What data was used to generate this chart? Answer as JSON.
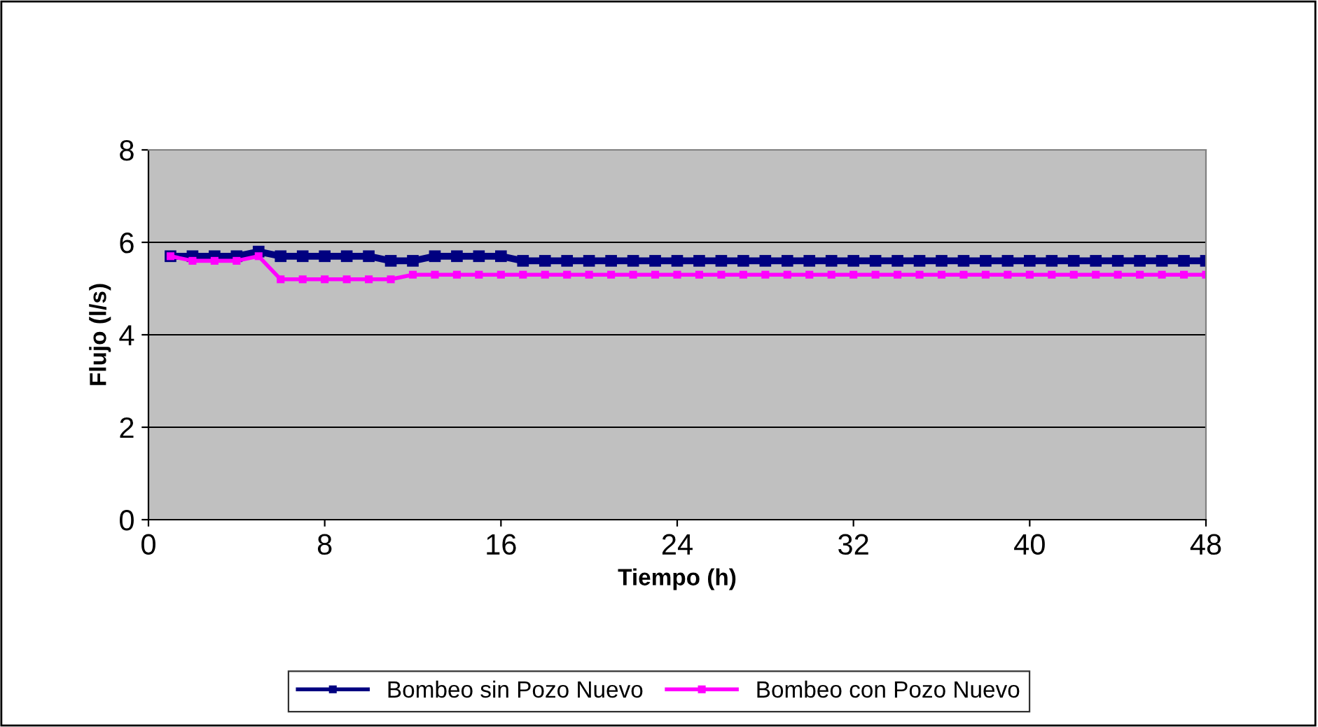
{
  "chart_data": {
    "type": "line",
    "xlabel": "Tiempo (h)",
    "ylabel": "Flujo (l/s)",
    "x": [
      1,
      2,
      3,
      4,
      5,
      6,
      7,
      8,
      9,
      10,
      11,
      12,
      13,
      14,
      15,
      16,
      17,
      18,
      19,
      20,
      21,
      22,
      23,
      24,
      25,
      26,
      27,
      28,
      29,
      30,
      31,
      32,
      33,
      34,
      35,
      36,
      37,
      38,
      39,
      40,
      41,
      42,
      43,
      44,
      45,
      46,
      47,
      48
    ],
    "series": [
      {
        "name": "Bombeo sin Pozo Nuevo",
        "color": "#000080",
        "values": [
          5.7,
          5.7,
          5.7,
          5.7,
          5.8,
          5.7,
          5.7,
          5.7,
          5.7,
          5.7,
          5.6,
          5.6,
          5.7,
          5.7,
          5.7,
          5.7,
          5.6,
          5.6,
          5.6,
          5.6,
          5.6,
          5.6,
          5.6,
          5.6,
          5.6,
          5.6,
          5.6,
          5.6,
          5.6,
          5.6,
          5.6,
          5.6,
          5.6,
          5.6,
          5.6,
          5.6,
          5.6,
          5.6,
          5.6,
          5.6,
          5.6,
          5.6,
          5.6,
          5.6,
          5.6,
          5.6,
          5.6,
          5.6
        ]
      },
      {
        "name": "Bombeo con Pozo Nuevo",
        "color": "#ff00ff",
        "values": [
          5.7,
          5.6,
          5.6,
          5.6,
          5.7,
          5.2,
          5.2,
          5.2,
          5.2,
          5.2,
          5.2,
          5.3,
          5.3,
          5.3,
          5.3,
          5.3,
          5.3,
          5.3,
          5.3,
          5.3,
          5.3,
          5.3,
          5.3,
          5.3,
          5.3,
          5.3,
          5.3,
          5.3,
          5.3,
          5.3,
          5.3,
          5.3,
          5.3,
          5.3,
          5.3,
          5.3,
          5.3,
          5.3,
          5.3,
          5.3,
          5.3,
          5.3,
          5.3,
          5.3,
          5.3,
          5.3,
          5.3,
          5.3
        ]
      }
    ],
    "xlim": [
      0,
      48
    ],
    "xticks": [
      0,
      8,
      16,
      24,
      32,
      40,
      48
    ],
    "ylim": [
      0,
      8
    ],
    "yticks": [
      0,
      2,
      4,
      6,
      8
    ],
    "grid": "y",
    "legend": "bottom",
    "marker": "square",
    "line_style": "solid"
  }
}
